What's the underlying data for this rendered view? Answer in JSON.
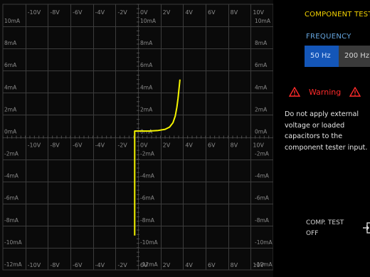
{
  "plot": {
    "x_labels": [
      "-10V",
      "-8V",
      "-6V",
      "-4V",
      "-2V",
      "0V",
      "2V",
      "4V",
      "6V",
      "8V",
      "10V"
    ],
    "x_label_rows": [
      "top",
      "middle",
      "bottom"
    ],
    "y_labels": [
      {
        "text": "10mA",
        "row": 0
      },
      {
        "text": "8mA",
        "row": 1
      },
      {
        "text": "6mA",
        "row": 2
      },
      {
        "text": "4mA",
        "row": 3
      },
      {
        "text": "2mA",
        "row": 4
      },
      {
        "text": "0mA",
        "row": 5
      },
      {
        "text": "-2mA",
        "row": 6
      },
      {
        "text": "-4mA",
        "row": 7
      },
      {
        "text": "-6mA",
        "row": 8
      },
      {
        "text": "-8mA",
        "row": 9
      },
      {
        "text": "-10mA",
        "row": 10
      },
      {
        "text": "-12mA",
        "row": 11
      }
    ],
    "trace_color": "#f5f500",
    "grid_color": "#3c3c3c",
    "label_color": "#8a8a8a",
    "trace": [
      {
        "v": -0.3,
        "i": -8.9
      },
      {
        "v": -0.3,
        "i": -7.0
      },
      {
        "v": -0.3,
        "i": -4.0
      },
      {
        "v": -0.3,
        "i": -1.0
      },
      {
        "v": -0.3,
        "i": 0.55
      },
      {
        "v": 0.0,
        "i": 0.55
      },
      {
        "v": 1.0,
        "i": 0.55
      },
      {
        "v": 1.8,
        "i": 0.6
      },
      {
        "v": 2.4,
        "i": 0.7
      },
      {
        "v": 2.8,
        "i": 0.9
      },
      {
        "v": 3.1,
        "i": 1.3
      },
      {
        "v": 3.3,
        "i": 1.9
      },
      {
        "v": 3.45,
        "i": 2.7
      },
      {
        "v": 3.55,
        "i": 3.5
      },
      {
        "v": 3.65,
        "i": 4.5
      },
      {
        "v": 3.72,
        "i": 5.2
      }
    ]
  },
  "panel": {
    "title": "COMPONENT TEST",
    "frequency_label": "FREQUENCY",
    "freq_options": [
      "50 Hz",
      "200 Hz"
    ],
    "selected_frequency": "50 Hz",
    "warning_title": "Warning",
    "warning_text": "Do not apply external voltage or loaded capacitors to the component tester input.",
    "comp_test_label": "COMP. TEST",
    "comp_test_state": "OFF",
    "accent_color": "#f5d400",
    "warning_color": "#ff2a2a"
  }
}
